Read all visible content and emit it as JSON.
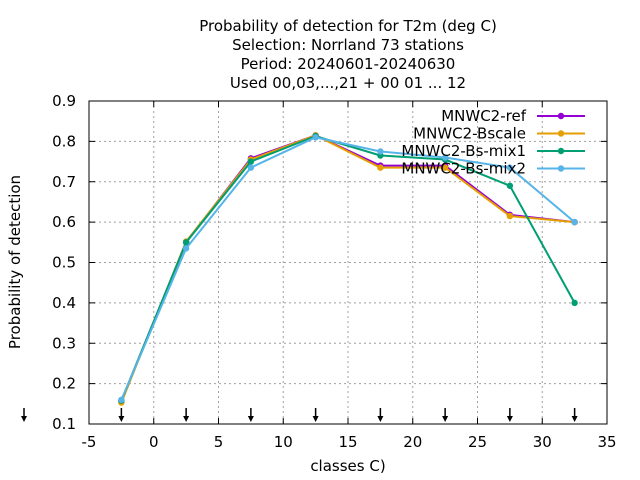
{
  "chart_data": {
    "type": "line",
    "title_lines": [
      "Probability of detection  for T2m (deg C)",
      "Selection: Norrland     73 stations",
      "Period: 20240601-20240630",
      "Used 00,03,...,21 + 00 01 ... 12"
    ],
    "xlabel": "classes C)",
    "ylabel": "Probability of detection",
    "xlim": [
      -5,
      35
    ],
    "ylim": [
      0.1,
      0.9
    ],
    "x_ticks": [
      -5,
      0,
      5,
      10,
      15,
      20,
      25,
      30,
      35
    ],
    "y_ticks": [
      0.1,
      0.2,
      0.3,
      0.4,
      0.5,
      0.6,
      0.7,
      0.8,
      0.9
    ],
    "x_tick_labels": [
      "-5",
      "0",
      "5",
      "10",
      "15",
      "20",
      "25",
      "30",
      "35"
    ],
    "y_tick_labels": [
      "0.1",
      "0.2",
      "0.3",
      "0.4",
      "0.5",
      "0.6",
      "0.7",
      "0.8",
      "0.9"
    ],
    "grid": true,
    "legend_position": "top-right",
    "markers_below_axis_x": [
      -2.5,
      2.5,
      7.5,
      12.5,
      17.5,
      22.5,
      27.5,
      32.5
    ],
    "x": [
      -2.5,
      2.5,
      7.5,
      12.5,
      17.5,
      22.5,
      27.5,
      32.5
    ],
    "series": [
      {
        "name": "MNWC2-ref",
        "color": "#9400d3",
        "values": [
          0.157,
          0.55,
          0.758,
          0.815,
          0.74,
          0.74,
          0.618,
          0.6
        ]
      },
      {
        "name": "MNWC2-Bscale",
        "color": "#e69f00",
        "values": [
          0.153,
          0.552,
          0.755,
          0.815,
          0.735,
          0.735,
          0.615,
          0.6
        ]
      },
      {
        "name": "MNWC2-Bs-mix1",
        "color": "#009e73",
        "values": [
          0.158,
          0.55,
          0.75,
          0.813,
          0.765,
          0.755,
          0.69,
          0.4
        ]
      },
      {
        "name": "MNWC2-Bs-mix2",
        "color": "#56b4e9",
        "values": [
          0.16,
          0.535,
          0.735,
          0.81,
          0.775,
          0.76,
          0.735,
          0.6
        ]
      }
    ]
  }
}
